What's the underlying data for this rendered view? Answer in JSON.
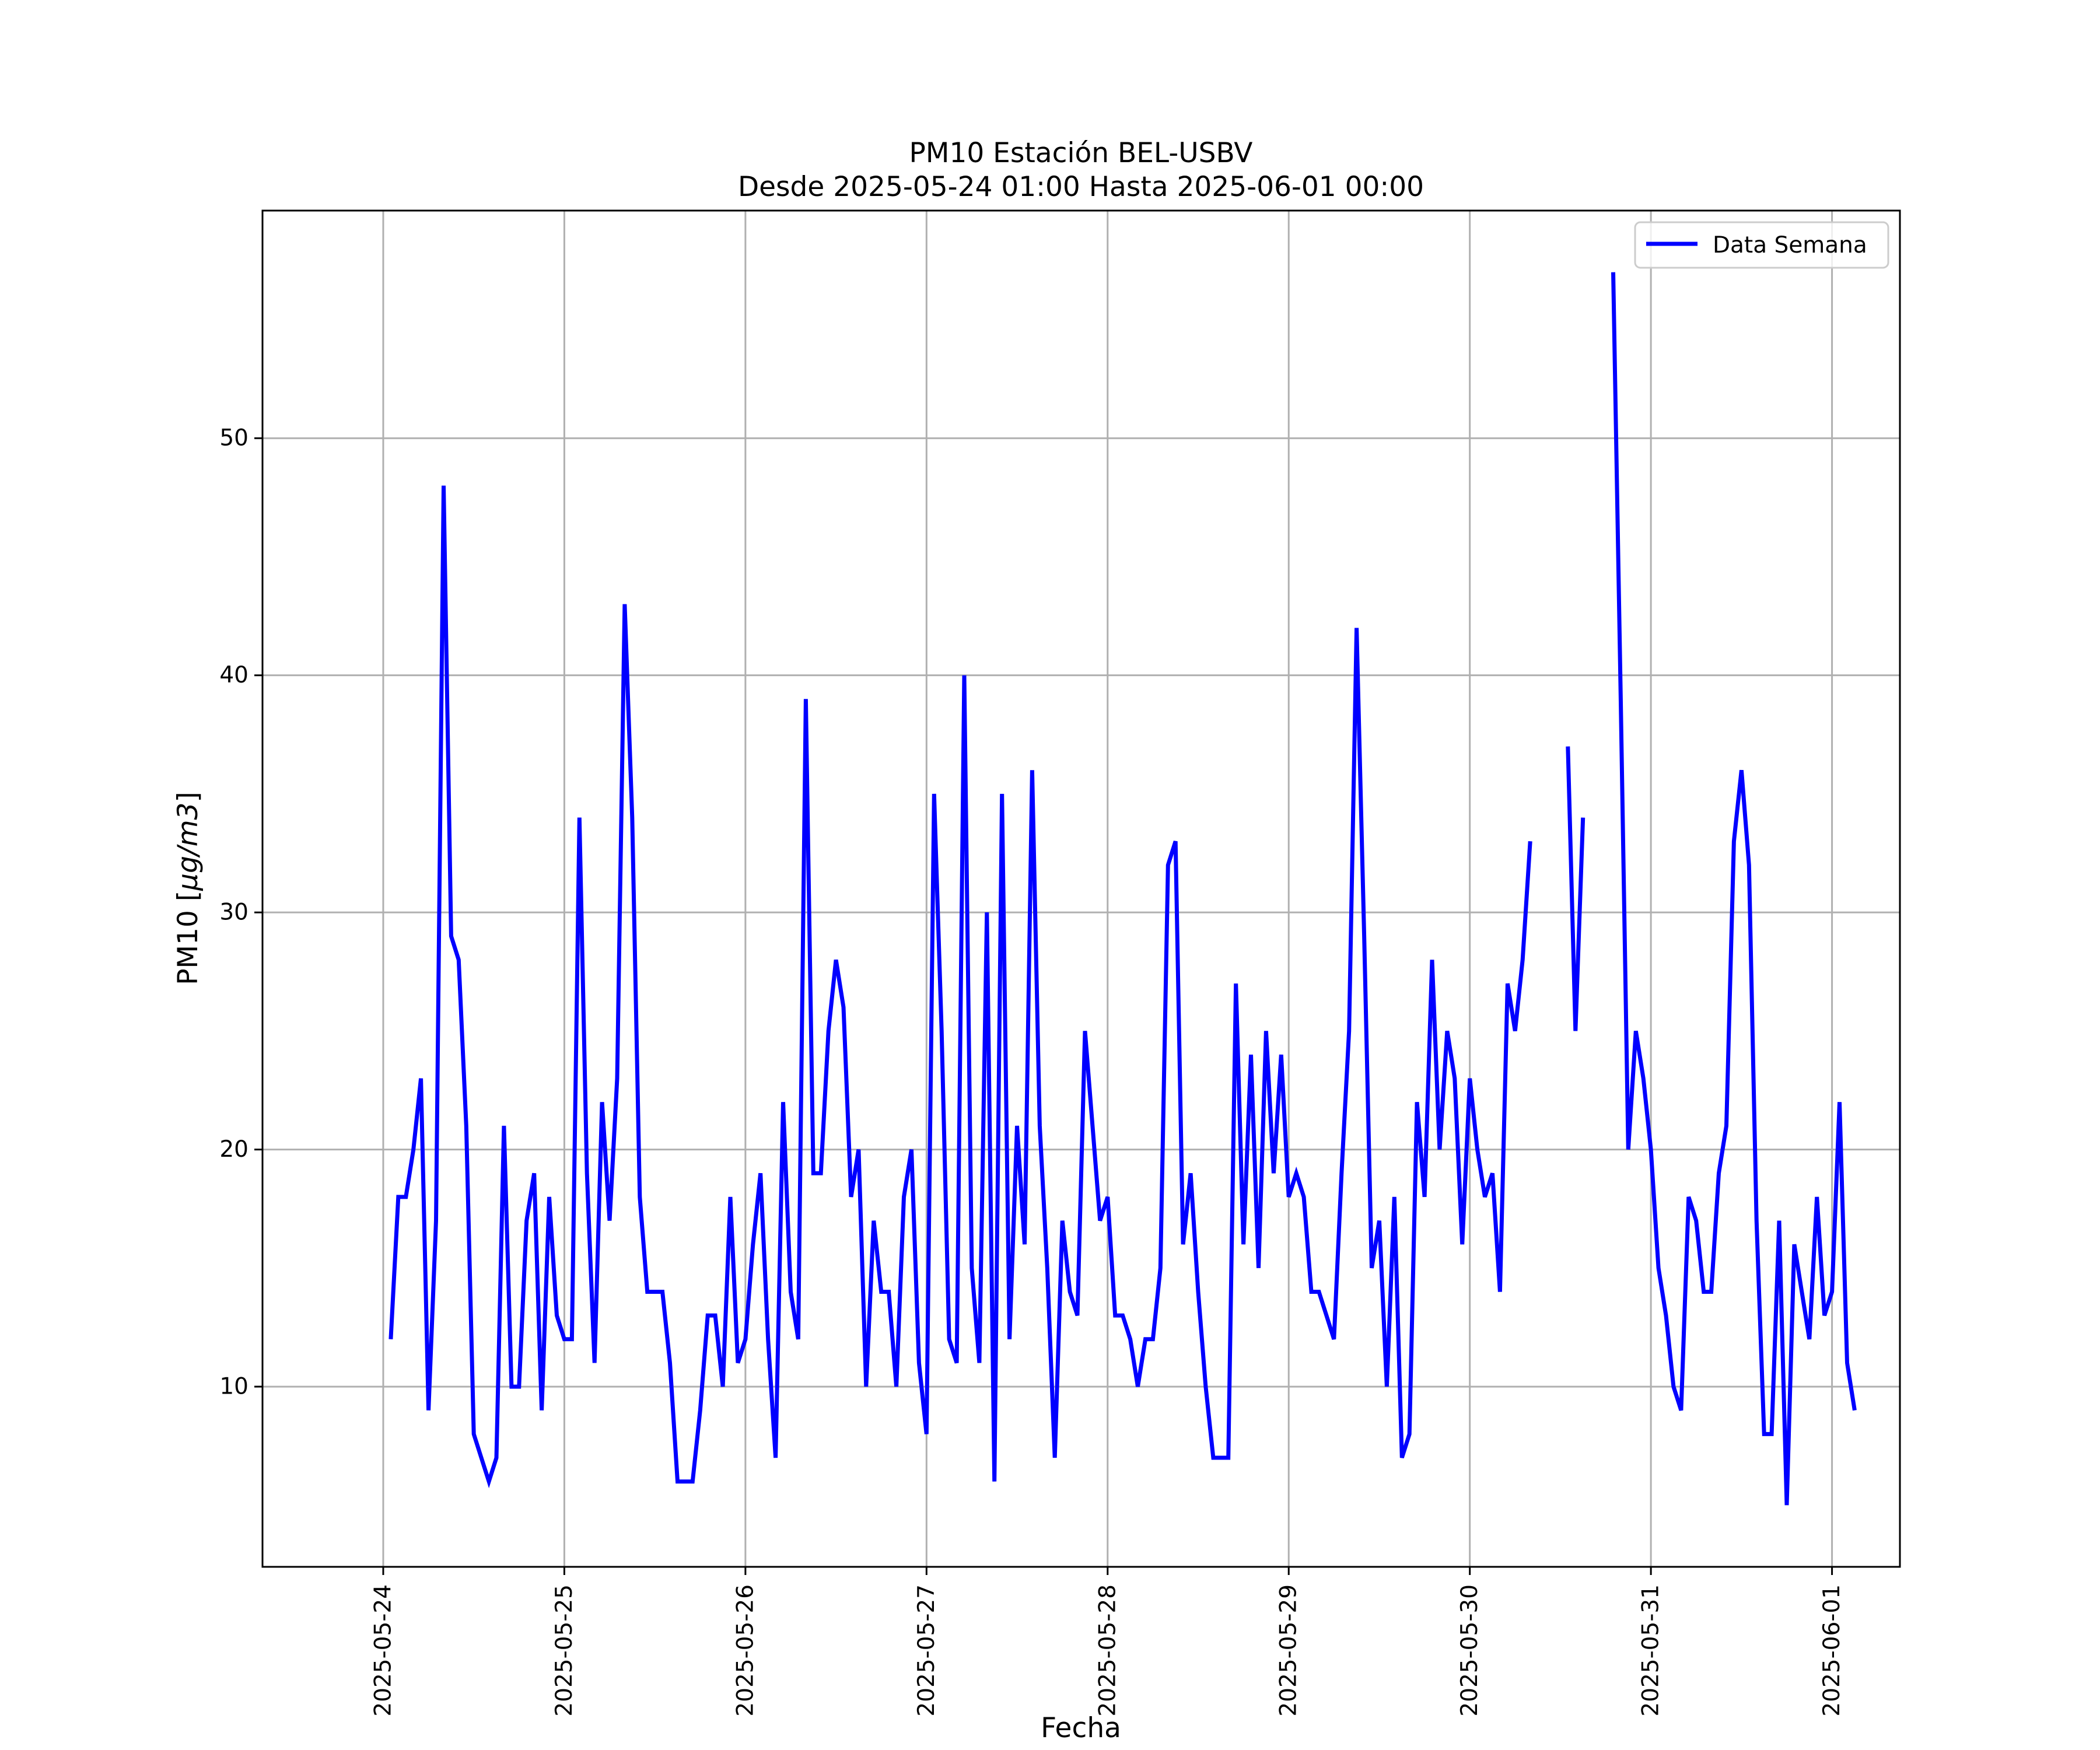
{
  "chart_data": {
    "type": "line",
    "title": "PM10 Estación BEL-USBV",
    "subtitle": "Desde 2025-05-24 01:00 Hasta 2025-06-01 00:00",
    "xlabel": "Fecha",
    "ylabel": "PM10 [μg/m3]",
    "ylabel_prefix": "PM10 [",
    "ylabel_unit": "μg/m3",
    "ylabel_suffix": "]",
    "x_ticks": [
      "2025-05-24",
      "2025-05-25",
      "2025-05-26",
      "2025-05-27",
      "2025-05-28",
      "2025-05-29",
      "2025-05-30",
      "2025-05-31",
      "2025-06-01"
    ],
    "x_start": "2025-05-24 01:00",
    "x_end": "2025-06-01 00:00",
    "xlim": [
      "2025-05-23 08:00",
      "2025-06-01 09:00"
    ],
    "y_ticks": [
      10,
      20,
      30,
      40,
      50
    ],
    "ylim": [
      2.4,
      59.6
    ],
    "grid": true,
    "legend_position": "top-right",
    "series": [
      {
        "name": "Data Semana",
        "color": "#0000ff",
        "values": [
          12,
          18,
          18,
          20,
          23,
          9,
          17,
          48,
          29,
          28,
          21,
          8,
          7,
          6,
          7,
          21,
          10,
          10,
          17,
          19,
          9,
          18,
          13,
          12,
          12,
          34,
          19,
          11,
          22,
          17,
          23,
          43,
          34,
          18,
          14,
          14,
          14,
          11,
          6,
          6,
          6,
          9,
          13,
          13,
          10,
          18,
          11,
          12,
          16,
          19,
          12,
          7,
          22,
          14,
          12,
          39,
          19,
          19,
          25,
          28,
          26,
          18,
          20,
          10,
          17,
          14,
          14,
          10,
          18,
          20,
          11,
          8,
          35,
          25,
          12,
          11,
          40,
          15,
          11,
          30,
          6,
          35,
          12,
          21,
          16,
          36,
          21,
          15,
          7,
          17,
          14,
          13,
          25,
          21,
          17,
          18,
          13,
          13,
          12,
          10,
          12,
          12,
          15,
          32,
          33,
          16,
          19,
          14,
          10,
          7,
          7,
          7,
          27,
          16,
          24,
          15,
          25,
          19,
          24,
          18,
          19,
          18,
          14,
          14,
          13,
          12,
          19,
          25,
          42,
          29,
          15,
          17,
          10,
          18,
          7,
          8,
          22,
          18,
          28,
          20,
          25,
          23,
          16,
          23,
          20,
          18,
          19,
          14,
          27,
          25,
          28,
          33,
          null,
          null,
          null,
          null,
          37,
          25,
          34,
          null,
          null,
          null,
          57,
          39,
          20,
          25,
          23,
          20,
          15,
          13,
          10,
          9,
          18,
          17,
          14,
          14,
          19,
          21,
          33,
          36,
          32,
          17,
          8,
          8,
          17,
          5,
          16,
          14,
          12,
          18,
          13,
          14,
          22,
          11,
          9
        ]
      }
    ]
  }
}
